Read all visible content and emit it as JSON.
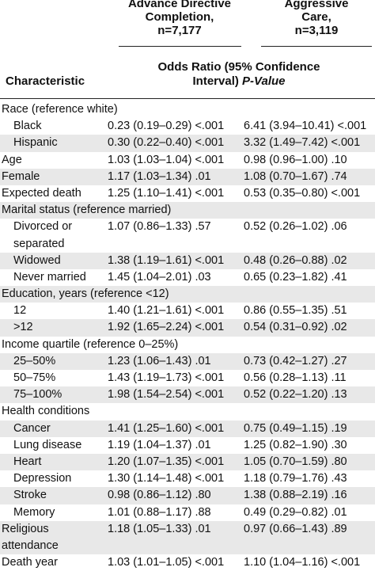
{
  "header": {
    "col1": [
      "Advance Directive",
      "Completion,",
      "n=7,177"
    ],
    "col2": [
      "Aggressive",
      "Care,",
      "n=3,119"
    ],
    "or_main": "Odds Ratio (95% Confidence",
    "or_second": "Interval) ",
    "or_pvalue": "P-Value",
    "characteristic": "Characteristic"
  },
  "rows": [
    {
      "label": "Race (reference white)",
      "c1": "",
      "c2": ""
    },
    {
      "label": "Black",
      "c1": "0.23 (0.19–0.29) <.001",
      "c2": "6.41 (3.94–10.41) <.001"
    },
    {
      "label": "Hispanic",
      "c1": "0.30 (0.22–0.40) <.001",
      "c2": "3.32 (1.49–7.42) <.001"
    },
    {
      "label": "Age",
      "c1": "1.03 (1.03–1.04) <.001",
      "c2": "0.98 (0.96–1.00) .10"
    },
    {
      "label": "Female",
      "c1": "1.17 (1.03–1.34) .01",
      "c2": "1.08 (0.70–1.67) .74"
    },
    {
      "label": "Expected death",
      "c1": "1.25 (1.10–1.41) <.001",
      "c2": "0.53 (0.35–0.80) <.001"
    },
    {
      "label": "Marital status (reference married)",
      "c1": "",
      "c2": ""
    },
    {
      "label": "Divorced or",
      "label2": "separated",
      "c1": "1.07 (0.86–1.33) .57",
      "c2": "0.52 (0.26–1.02) .06"
    },
    {
      "label": "Widowed",
      "c1": "1.38 (1.19–1.61) <.001",
      "c2": "0.48 (0.26–0.88) .02"
    },
    {
      "label": "Never married",
      "c1": "1.45 (1.04–2.01) .03",
      "c2": "0.65 (0.23–1.82) .41"
    },
    {
      "label": "Education, years (reference <12)",
      "c1": "",
      "c2": ""
    },
    {
      "label": "12",
      "c1": "1.40 (1.21–1.61) <.001",
      "c2": "0.86 (0.55–1.35) .51"
    },
    {
      "label": ">12",
      "c1": "1.92 (1.65–2.24) <.001",
      "c2": "0.54 (0.31–0.92) .02"
    },
    {
      "label": "Income quartile (reference 0–25%)",
      "c1": "",
      "c2": ""
    },
    {
      "label": "25–50%",
      "c1": "1.23 (1.06–1.43) .01",
      "c2": "0.73 (0.42–1.27) .27"
    },
    {
      "label": "50–75%",
      "c1": "1.43 (1.19–1.73) <.001",
      "c2": "0.56 (0.28–1.13) .11"
    },
    {
      "label": "75–100%",
      "c1": "1.98 (1.54–2.54) <.001",
      "c2": "0.52 (0.22–1.20) .13"
    },
    {
      "label": "Health conditions",
      "c1": "",
      "c2": ""
    },
    {
      "label": "Cancer",
      "c1": "1.41 (1.25–1.60) <.001",
      "c2": "0.75 (0.49–1.15) .19"
    },
    {
      "label": "Lung disease",
      "c1": "1.19 (1.04–1.37) .01",
      "c2": "1.25 (0.82–1.90) .30"
    },
    {
      "label": "Heart",
      "c1": "1.20 (1.07–1.35) <.001",
      "c2": "1.05 (0.70–1.59) .80"
    },
    {
      "label": "Depression",
      "c1": "1.30 (1.14–1.48) <.001",
      "c2": "1.18 (0.79–1.76) .43"
    },
    {
      "label": "Stroke",
      "c1": "0.98 (0.86–1.12) .80",
      "c2": "1.38 (0.88–2.19) .16"
    },
    {
      "label": "Memory",
      "c1": "1.01 (0.88–1.17) .88",
      "c2": "0.49 (0.29–0.82) .01"
    },
    {
      "label": "Religious",
      "label2": "attendance",
      "c1": "1.18 (1.05–1.33) .01",
      "c2": "0.97 (0.66–1.43) .89"
    },
    {
      "label": "Death year",
      "c1": "1.03 (1.01–1.05) <.001",
      "c2": "1.10 (1.04–1.16) <.001"
    }
  ]
}
